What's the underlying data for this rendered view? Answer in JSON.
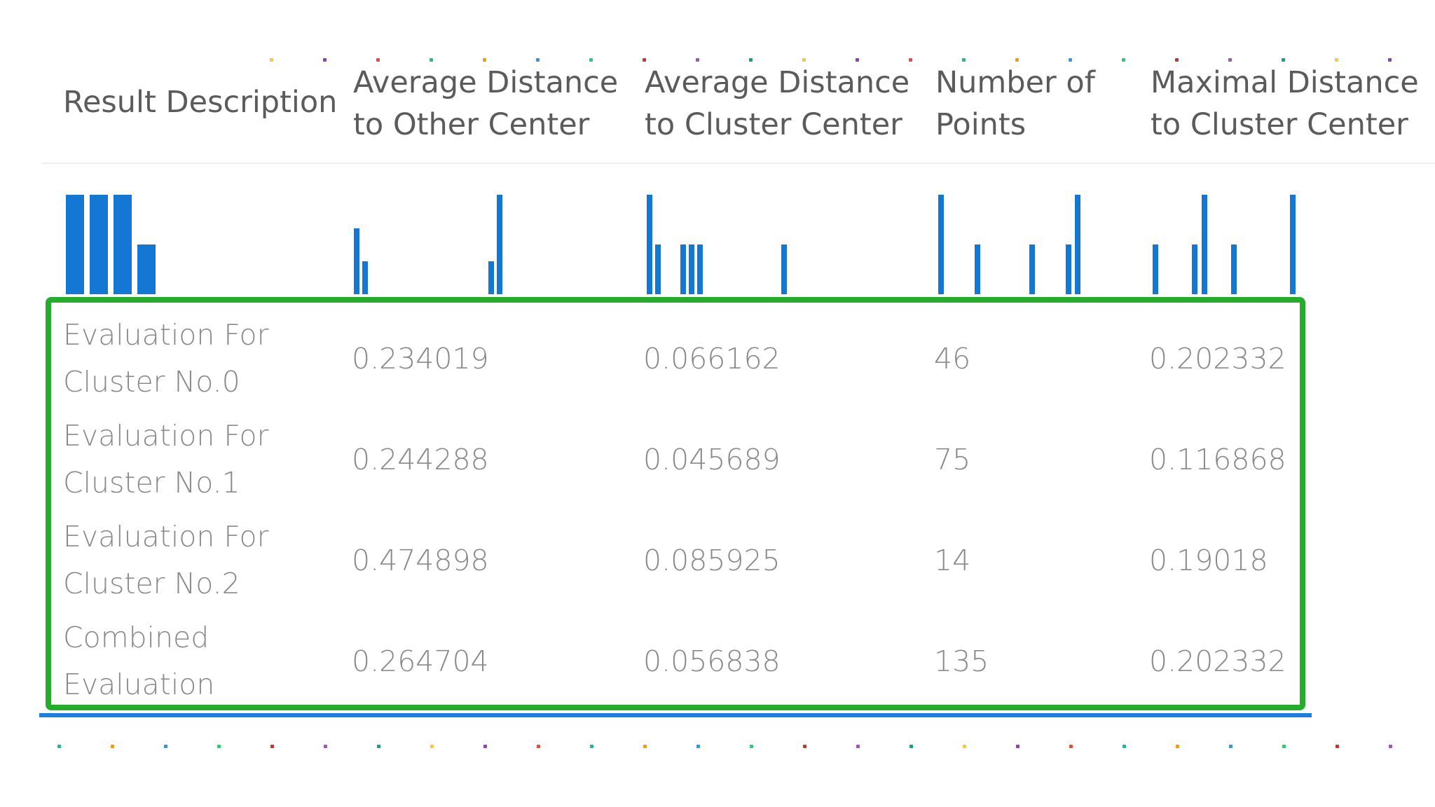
{
  "columns": [
    {
      "key": "description",
      "label_line1": "Result Description",
      "label_line2": ""
    },
    {
      "key": "avg_other",
      "label_line1": "Average Distance",
      "label_line2": "to Other Center"
    },
    {
      "key": "avg_cluster",
      "label_line1": "Average Distance",
      "label_line2": "to Cluster Center"
    },
    {
      "key": "num_points",
      "label_line1": "Number of",
      "label_line2": "Points"
    },
    {
      "key": "max_cluster",
      "label_line1": "Maximal Distance",
      "label_line2": "to Cluster Center"
    }
  ],
  "rows": [
    {
      "label_line1": "Evaluation For",
      "label_line2": "Cluster No.0",
      "avg_other": "0.234019",
      "avg_cluster": "0.066162",
      "num_points": "46",
      "max_cluster": "0.202332"
    },
    {
      "label_line1": "Evaluation For",
      "label_line2": "Cluster No.1",
      "avg_other": "0.244288",
      "avg_cluster": "0.045689",
      "num_points": "75",
      "max_cluster": "0.116868"
    },
    {
      "label_line1": "Evaluation For",
      "label_line2": "Cluster No.2",
      "avg_other": "0.474898",
      "avg_cluster": "0.085925",
      "num_points": "14",
      "max_cluster": "0.19018"
    },
    {
      "label_line1": "Combined",
      "label_line2": "Evaluation",
      "avg_other": "0.264704",
      "avg_cluster": "0.056838",
      "num_points": "135",
      "max_cluster": "0.202332"
    }
  ],
  "sparkline_counts": {
    "description": [
      1,
      1,
      1,
      0.5
    ],
    "avg_other": [
      0.66,
      0.33,
      0,
      0,
      0,
      0,
      0,
      0,
      0,
      0,
      0,
      0,
      0,
      0,
      0,
      0,
      0.33,
      1
    ],
    "avg_cluster": [
      1,
      0.5,
      0,
      0,
      0.5,
      0.5,
      0.5,
      0,
      0,
      0,
      0,
      0,
      0,
      0,
      0,
      0,
      0.5
    ],
    "num_points": [
      1,
      0,
      0,
      0,
      0.5,
      0,
      0,
      0,
      0,
      0,
      0.5,
      0,
      0,
      0,
      0.5,
      1
    ],
    "max_cluster": [
      0.5,
      0,
      0,
      0,
      0.5,
      1,
      0,
      0,
      0.5,
      0,
      0,
      0,
      0,
      0,
      1
    ]
  },
  "colors": {
    "bar": "#1477d4",
    "highlight": "#23ad2b",
    "text_header": "#5b5b5b",
    "text_cell": "#8a8a8a",
    "underline": "#1a7fe0"
  },
  "icons": {
    "dot_decoration": "dot-icon"
  }
}
